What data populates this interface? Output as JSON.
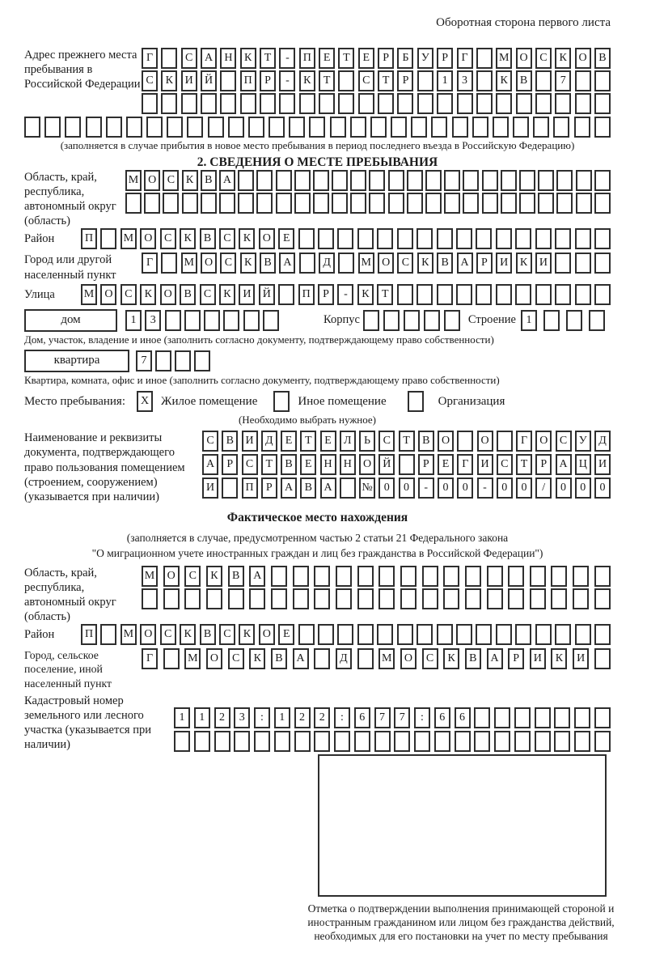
{
  "page": {
    "top_note": "Оборотная сторона первого листа"
  },
  "colors": {
    "ink": "#1b1b1b",
    "box_border": "#2e2e2e",
    "background": "#ffffff"
  },
  "prev_address": {
    "label": "Адрес прежнего места пребывания в Российской Федерации",
    "rows": [
      "Г САНКТ-ПЕТЕРБУРГ МОСКОВ",
      "СКИЙ ПР-КТ СТР 13 КВ 7",
      "",
      ""
    ],
    "note": "(заполняется в случае прибытия в новое место пребывания в период последнего въезда в Российскую Федерацию)"
  },
  "section2": {
    "title": "2. СВЕДЕНИЯ О МЕСТЕ ПРЕБЫВАНИЯ",
    "region": {
      "label": "Область, край, республика, автономный округ (область)",
      "rows": [
        "МОСКВА",
        ""
      ]
    },
    "district": {
      "label": "Район",
      "value": "П МОСКВСКОЕ"
    },
    "city": {
      "label": "Город или другой населенный пункт",
      "value": "Г МОСКВА Д МОСКВАРИКИ"
    },
    "street": {
      "label": "Улица",
      "value": "МОСКОВСКИЙ ПР-КТ"
    },
    "house": {
      "box_label": "дом",
      "cells": "13",
      "korpus_label": "Корпус",
      "korpus_cells": "",
      "stroenie_label": "Строение",
      "stroenie_cells": "1"
    },
    "house_caption": "Дом, участок, владение и иное (заполнить согласно документу, подтверждающему право собственности)",
    "apartment": {
      "box_label": "квартира",
      "cells": "7"
    },
    "apartment_caption": "Квартира, комната, офис и иное (заполнить согласно документу, подтверждающему право собственности)",
    "stay_place": {
      "label": "Место пребывания:",
      "options": [
        {
          "label": "Жилое помещение",
          "checked": "X"
        },
        {
          "label": "Иное помещение",
          "checked": ""
        },
        {
          "label": "Организация",
          "checked": ""
        }
      ],
      "note": "(Необходимо выбрать нужное)"
    },
    "document": {
      "label": "Наименование и реквизиты документа, подтверждающего право пользования помещением (строением, сооружением) (указывается при наличии)",
      "rows": [
        "СВИДЕТЕЛЬСТВО О ГОСУД",
        "АРСТВЕННОЙ РЕГИСТРАЦИ",
        "И ПРАВА №00-00-00/000"
      ]
    }
  },
  "actual_location": {
    "title": "Фактическое место нахождения",
    "note_line1": "(заполняется в случае, предусмотренном частью 2 статьи 21 Федерального закона",
    "note_line2": "\"О миграционном учете иностранных граждан и лиц без гражданства в Российской Федерации\")",
    "region": {
      "label": "Область, край, республика, автономный округ (область)",
      "rows": [
        "МОСКВА",
        ""
      ]
    },
    "district": {
      "label": "Район",
      "value": "П МОСКВСКОЕ"
    },
    "city": {
      "label": "Город, сельское поселение, иной населенный пункт",
      "value": "Г МОСКВА Д МОСКВАРИКИ"
    },
    "cadastral": {
      "label": "Кадастровый номер земельного или лесного участка (указывается при наличии)",
      "rows": [
        "1123:122:677:66",
        ""
      ]
    }
  },
  "confirmation": {
    "caption": "Отметка о подтверждении выполнения принимающей стороной и иностранным гражданином или лицом без гражданства действий, необходимых для его постановки на учет по месту пребывания"
  }
}
